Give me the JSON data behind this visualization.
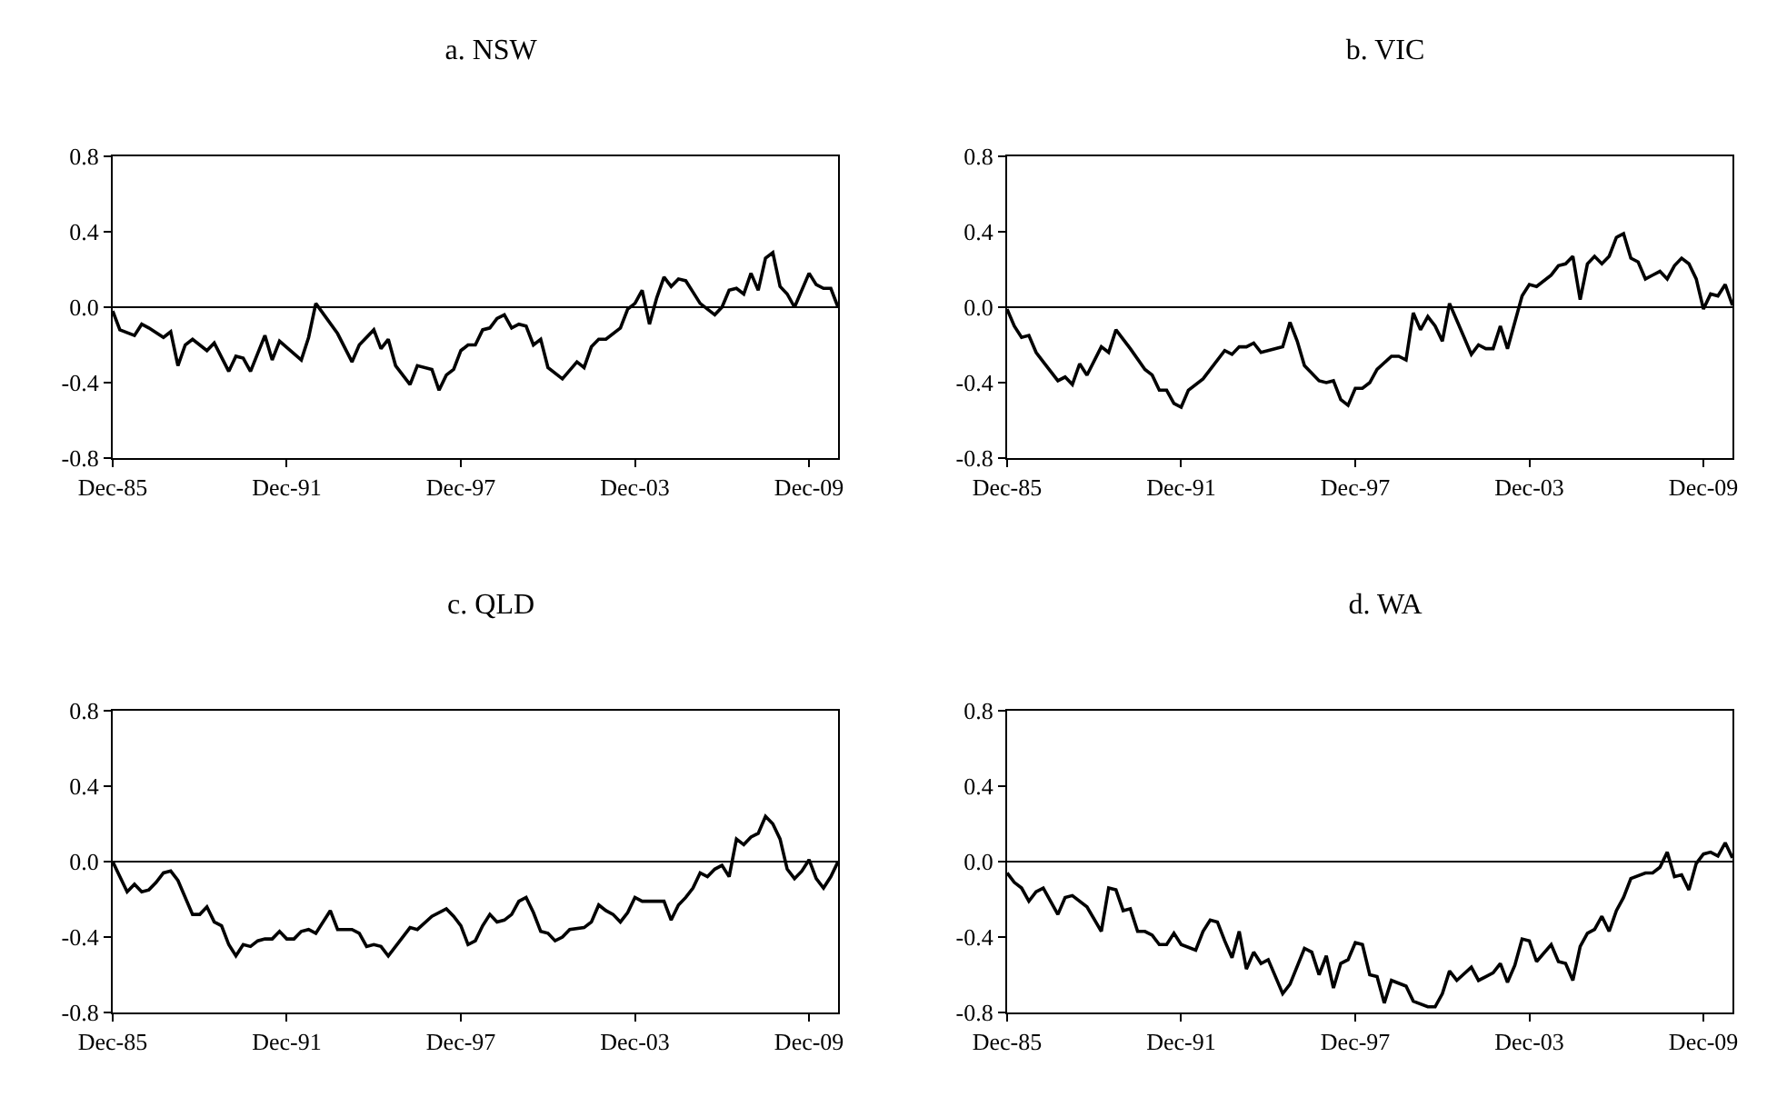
{
  "chart_data": [
    {
      "type": "line",
      "title": "a. NSW",
      "ref_lines": [
        {
          "axis": "y",
          "value": 0
        }
      ],
      "xlim": [
        "1985-12",
        "2010-12"
      ],
      "ylim": [
        -0.8,
        0.8
      ],
      "grid": false,
      "xticks": [
        {
          "value": "1985-12",
          "label": "Dec-85"
        },
        {
          "value": "1991-12",
          "label": "Dec-91"
        },
        {
          "value": "1997-12",
          "label": "Dec-97"
        },
        {
          "value": "2003-12",
          "label": "Dec-03"
        },
        {
          "value": "2009-12",
          "label": "Dec-09"
        }
      ],
      "yticks": [
        {
          "value": -0.8,
          "label": "-0.8"
        },
        {
          "value": -0.4,
          "label": "-0.4"
        },
        {
          "value": 0,
          "label": "0.0"
        },
        {
          "value": 0.4,
          "label": "0.4"
        },
        {
          "value": 0.8,
          "label": "0.8"
        }
      ],
      "x": [
        "1985-12",
        "1986-03",
        "1986-09",
        "1986-12",
        "1987-03",
        "1987-09",
        "1987-12",
        "1988-03",
        "1988-06",
        "1988-09",
        "1989-03",
        "1989-06",
        "1989-12",
        "1990-03",
        "1990-06",
        "1990-09",
        "1991-03",
        "1991-06",
        "1991-09",
        "1992-06",
        "1992-09",
        "1992-12",
        "1993-09",
        "1994-03",
        "1994-06",
        "1994-12",
        "1995-03",
        "1995-06",
        "1995-09",
        "1996-03",
        "1996-06",
        "1996-12",
        "1997-03",
        "1997-06",
        "1997-09",
        "1997-12",
        "1998-03",
        "1998-06",
        "1998-09",
        "1998-12",
        "1999-03",
        "1999-06",
        "1999-09",
        "1999-12",
        "2000-03",
        "2000-06",
        "2000-09",
        "2000-12",
        "2001-06",
        "2001-12",
        "2002-03",
        "2002-06",
        "2002-09",
        "2002-12",
        "2003-06",
        "2003-09",
        "2003-12",
        "2004-03",
        "2004-06",
        "2004-09",
        "2004-12",
        "2005-03",
        "2005-06",
        "2005-09",
        "2005-12",
        "2006-03",
        "2006-09",
        "2006-12",
        "2007-03",
        "2007-06",
        "2007-09",
        "2007-12",
        "2008-03",
        "2008-06",
        "2008-09",
        "2008-12",
        "2009-03",
        "2009-06",
        "2009-12",
        "2010-03",
        "2010-06",
        "2010-09",
        "2010-12"
      ],
      "series": [
        {
          "color": "#000000",
          "values": [
            -0.02,
            -0.12,
            -0.15,
            -0.09,
            -0.11,
            -0.16,
            -0.13,
            -0.31,
            -0.2,
            -0.17,
            -0.23,
            -0.19,
            -0.34,
            -0.26,
            -0.27,
            -0.34,
            -0.15,
            -0.28,
            -0.18,
            -0.28,
            -0.16,
            0.02,
            -0.14,
            -0.29,
            -0.2,
            -0.12,
            -0.22,
            -0.17,
            -0.31,
            -0.41,
            -0.31,
            -0.33,
            -0.44,
            -0.36,
            -0.33,
            -0.23,
            -0.2,
            -0.2,
            -0.12,
            -0.11,
            -0.06,
            -0.04,
            -0.11,
            -0.09,
            -0.1,
            -0.2,
            -0.17,
            -0.32,
            -0.38,
            -0.29,
            -0.32,
            -0.21,
            -0.17,
            -0.17,
            -0.11,
            -0.01,
            0.02,
            0.09,
            -0.09,
            0.05,
            0.16,
            0.11,
            0.15,
            0.14,
            0.08,
            0.02,
            -0.04,
            0.0,
            0.09,
            0.1,
            0.07,
            0.18,
            0.09,
            0.26,
            0.29,
            0.11,
            0.07,
            0.0,
            0.18,
            0.12,
            0.1,
            0.1,
            0.0
          ]
        }
      ]
    },
    {
      "type": "line",
      "title": "b. VIC",
      "ref_lines": [
        {
          "axis": "y",
          "value": 0
        }
      ],
      "xlim": [
        "1985-12",
        "2010-12"
      ],
      "ylim": [
        -0.8,
        0.8
      ],
      "grid": false,
      "xticks": [
        {
          "value": "1985-12",
          "label": "Dec-85"
        },
        {
          "value": "1991-12",
          "label": "Dec-91"
        },
        {
          "value": "1997-12",
          "label": "Dec-97"
        },
        {
          "value": "2003-12",
          "label": "Dec-03"
        },
        {
          "value": "2009-12",
          "label": "Dec-09"
        }
      ],
      "yticks": [
        {
          "value": -0.8,
          "label": "-0.8"
        },
        {
          "value": -0.4,
          "label": "-0.4"
        },
        {
          "value": 0,
          "label": "0.0"
        },
        {
          "value": 0.4,
          "label": "0.4"
        },
        {
          "value": 0.8,
          "label": "0.8"
        }
      ],
      "x": [
        "1985-12",
        "1986-03",
        "1986-06",
        "1986-09",
        "1986-12",
        "1987-03",
        "1987-09",
        "1987-12",
        "1988-03",
        "1988-06",
        "1988-09",
        "1989-03",
        "1989-06",
        "1989-09",
        "1990-03",
        "1990-09",
        "1990-12",
        "1991-03",
        "1991-06",
        "1991-09",
        "1991-12",
        "1992-03",
        "1992-09",
        "1993-06",
        "1993-09",
        "1993-12",
        "1994-03",
        "1994-06",
        "1994-09",
        "1995-06",
        "1995-09",
        "1995-12",
        "1996-03",
        "1996-09",
        "1996-12",
        "1997-03",
        "1997-06",
        "1997-09",
        "1997-12",
        "1998-03",
        "1998-06",
        "1998-09",
        "1999-03",
        "1999-06",
        "1999-09",
        "1999-12",
        "2000-03",
        "2000-06",
        "2000-09",
        "2000-12",
        "2001-03",
        "2001-06",
        "2001-09",
        "2001-12",
        "2002-03",
        "2002-06",
        "2002-09",
        "2002-12",
        "2003-03",
        "2003-09",
        "2003-12",
        "2004-03",
        "2004-09",
        "2004-12",
        "2005-03",
        "2005-06",
        "2005-09",
        "2005-12",
        "2006-03",
        "2006-06",
        "2006-09",
        "2006-12",
        "2007-03",
        "2007-06",
        "2007-09",
        "2007-12",
        "2008-03",
        "2008-06",
        "2008-09",
        "2008-12",
        "2009-03",
        "2009-06",
        "2009-09",
        "2009-12",
        "2010-03",
        "2010-06",
        "2010-09",
        "2010-12"
      ],
      "series": [
        {
          "color": "#000000",
          "values": [
            -0.01,
            -0.1,
            -0.16,
            -0.15,
            -0.24,
            -0.29,
            -0.39,
            -0.37,
            -0.41,
            -0.3,
            -0.36,
            -0.21,
            -0.24,
            -0.12,
            -0.22,
            -0.33,
            -0.36,
            -0.44,
            -0.44,
            -0.51,
            -0.53,
            -0.44,
            -0.38,
            -0.23,
            -0.25,
            -0.21,
            -0.21,
            -0.19,
            -0.24,
            -0.21,
            -0.08,
            -0.18,
            -0.31,
            -0.39,
            -0.4,
            -0.39,
            -0.49,
            -0.52,
            -0.43,
            -0.43,
            -0.4,
            -0.33,
            -0.26,
            -0.26,
            -0.28,
            -0.03,
            -0.12,
            -0.05,
            -0.1,
            -0.18,
            0.02,
            -0.07,
            -0.16,
            -0.25,
            -0.2,
            -0.22,
            -0.22,
            -0.1,
            -0.22,
            0.06,
            0.12,
            0.11,
            0.17,
            0.22,
            0.23,
            0.27,
            0.04,
            0.23,
            0.27,
            0.23,
            0.27,
            0.37,
            0.39,
            0.26,
            0.24,
            0.15,
            0.17,
            0.19,
            0.15,
            0.22,
            0.26,
            0.23,
            0.15,
            -0.01,
            0.07,
            0.06,
            0.12,
            0.01
          ]
        }
      ]
    },
    {
      "type": "line",
      "title": "c. QLD",
      "ref_lines": [
        {
          "axis": "y",
          "value": 0
        }
      ],
      "xlim": [
        "1985-12",
        "2010-12"
      ],
      "ylim": [
        -0.8,
        0.8
      ],
      "grid": false,
      "xticks": [
        {
          "value": "1985-12",
          "label": "Dec-85"
        },
        {
          "value": "1991-12",
          "label": "Dec-91"
        },
        {
          "value": "1997-12",
          "label": "Dec-97"
        },
        {
          "value": "2003-12",
          "label": "Dec-03"
        },
        {
          "value": "2009-12",
          "label": "Dec-09"
        }
      ],
      "yticks": [
        {
          "value": -0.8,
          "label": "-0.8"
        },
        {
          "value": -0.4,
          "label": "-0.4"
        },
        {
          "value": 0,
          "label": "0.0"
        },
        {
          "value": 0.4,
          "label": "0.4"
        },
        {
          "value": 0.8,
          "label": "0.8"
        }
      ],
      "x": [
        "1985-12",
        "1986-03",
        "1986-06",
        "1986-09",
        "1986-12",
        "1987-03",
        "1987-06",
        "1987-09",
        "1987-12",
        "1988-03",
        "1988-09",
        "1988-12",
        "1989-03",
        "1989-06",
        "1989-09",
        "1989-12",
        "1990-03",
        "1990-06",
        "1990-09",
        "1990-12",
        "1991-03",
        "1991-06",
        "1991-09",
        "1991-12",
        "1992-03",
        "1992-06",
        "1992-09",
        "1992-12",
        "1993-06",
        "1993-09",
        "1994-03",
        "1994-06",
        "1994-09",
        "1994-12",
        "1995-03",
        "1995-06",
        "1996-03",
        "1996-06",
        "1996-12",
        "1997-06",
        "1997-09",
        "1997-12",
        "1998-03",
        "1998-06",
        "1998-09",
        "1998-12",
        "1999-03",
        "1999-06",
        "1999-09",
        "1999-12",
        "2000-03",
        "2000-06",
        "2000-09",
        "2000-12",
        "2001-03",
        "2001-06",
        "2001-09",
        "2002-03",
        "2002-06",
        "2002-09",
        "2002-12",
        "2003-03",
        "2003-06",
        "2003-09",
        "2003-12",
        "2004-03",
        "2004-12",
        "2005-03",
        "2005-06",
        "2005-09",
        "2005-12",
        "2006-03",
        "2006-06",
        "2006-09",
        "2006-12",
        "2007-03",
        "2007-06",
        "2007-09",
        "2007-12",
        "2008-03",
        "2008-06",
        "2008-09",
        "2008-12",
        "2009-03",
        "2009-06",
        "2009-09",
        "2009-12",
        "2010-03",
        "2010-06",
        "2010-09",
        "2010-12"
      ],
      "series": [
        {
          "color": "#000000",
          "values": [
            0.0,
            -0.08,
            -0.16,
            -0.12,
            -0.16,
            -0.15,
            -0.11,
            -0.06,
            -0.05,
            -0.1,
            -0.28,
            -0.28,
            -0.24,
            -0.32,
            -0.34,
            -0.44,
            -0.5,
            -0.44,
            -0.45,
            -0.42,
            -0.41,
            -0.41,
            -0.37,
            -0.41,
            -0.41,
            -0.37,
            -0.36,
            -0.38,
            -0.26,
            -0.36,
            -0.36,
            -0.38,
            -0.45,
            -0.44,
            -0.45,
            -0.5,
            -0.35,
            -0.36,
            -0.29,
            -0.25,
            -0.29,
            -0.34,
            -0.44,
            -0.42,
            -0.34,
            -0.28,
            -0.32,
            -0.31,
            -0.28,
            -0.21,
            -0.19,
            -0.27,
            -0.37,
            -0.38,
            -0.42,
            -0.4,
            -0.36,
            -0.35,
            -0.32,
            -0.23,
            -0.26,
            -0.28,
            -0.32,
            -0.27,
            -0.19,
            -0.21,
            -0.21,
            -0.31,
            -0.23,
            -0.19,
            -0.14,
            -0.06,
            -0.08,
            -0.04,
            -0.02,
            -0.08,
            0.12,
            0.09,
            0.13,
            0.15,
            0.24,
            0.2,
            0.12,
            -0.04,
            -0.09,
            -0.05,
            0.01,
            -0.09,
            -0.14,
            -0.08,
            0.0
          ]
        }
      ]
    },
    {
      "type": "line",
      "title": "d. WA",
      "ref_lines": [
        {
          "axis": "y",
          "value": 0
        }
      ],
      "xlim": [
        "1985-12",
        "2010-12"
      ],
      "ylim": [
        -0.8,
        0.8
      ],
      "grid": false,
      "xticks": [
        {
          "value": "1985-12",
          "label": "Dec-85"
        },
        {
          "value": "1991-12",
          "label": "Dec-91"
        },
        {
          "value": "1997-12",
          "label": "Dec-97"
        },
        {
          "value": "2003-12",
          "label": "Dec-03"
        },
        {
          "value": "2009-12",
          "label": "Dec-09"
        }
      ],
      "yticks": [
        {
          "value": -0.8,
          "label": "-0.8"
        },
        {
          "value": -0.4,
          "label": "-0.4"
        },
        {
          "value": 0,
          "label": "0.0"
        },
        {
          "value": 0.4,
          "label": "0.4"
        },
        {
          "value": 0.8,
          "label": "0.8"
        }
      ],
      "x": [
        "1985-12",
        "1986-03",
        "1986-06",
        "1986-09",
        "1986-12",
        "1987-03",
        "1987-09",
        "1987-12",
        "1988-03",
        "1988-09",
        "1989-03",
        "1989-06",
        "1989-09",
        "1989-12",
        "1990-03",
        "1990-06",
        "1990-09",
        "1990-12",
        "1991-03",
        "1991-06",
        "1991-09",
        "1991-12",
        "1992-06",
        "1992-09",
        "1992-12",
        "1993-03",
        "1993-06",
        "1993-09",
        "1993-12",
        "1994-03",
        "1994-06",
        "1994-09",
        "1994-12",
        "1995-06",
        "1995-09",
        "1996-03",
        "1996-06",
        "1996-09",
        "1996-12",
        "1997-03",
        "1997-06",
        "1997-09",
        "1997-12",
        "1998-03",
        "1998-06",
        "1998-09",
        "1998-12",
        "1999-03",
        "1999-09",
        "1999-12",
        "2000-06",
        "2000-09",
        "2000-12",
        "2001-03",
        "2001-06",
        "2001-12",
        "2002-03",
        "2002-06",
        "2002-09",
        "2002-12",
        "2003-03",
        "2003-06",
        "2003-09",
        "2003-12",
        "2004-03",
        "2004-09",
        "2004-12",
        "2005-03",
        "2005-06",
        "2005-09",
        "2005-12",
        "2006-03",
        "2006-06",
        "2006-09",
        "2006-12",
        "2007-03",
        "2007-06",
        "2007-12",
        "2008-03",
        "2008-06",
        "2008-09",
        "2008-12",
        "2009-03",
        "2009-06",
        "2009-09",
        "2009-12",
        "2010-03",
        "2010-06",
        "2010-09",
        "2010-12"
      ],
      "series": [
        {
          "color": "#000000",
          "values": [
            -0.06,
            -0.11,
            -0.14,
            -0.21,
            -0.16,
            -0.14,
            -0.28,
            -0.19,
            -0.18,
            -0.24,
            -0.37,
            -0.14,
            -0.15,
            -0.26,
            -0.25,
            -0.37,
            -0.37,
            -0.39,
            -0.44,
            -0.44,
            -0.38,
            -0.44,
            -0.47,
            -0.37,
            -0.31,
            -0.32,
            -0.42,
            -0.51,
            -0.37,
            -0.57,
            -0.48,
            -0.54,
            -0.52,
            -0.7,
            -0.65,
            -0.46,
            -0.48,
            -0.6,
            -0.5,
            -0.67,
            -0.54,
            -0.52,
            -0.43,
            -0.44,
            -0.6,
            -0.61,
            -0.75,
            -0.63,
            -0.66,
            -0.74,
            -0.77,
            -0.77,
            -0.7,
            -0.58,
            -0.63,
            -0.56,
            -0.63,
            -0.61,
            -0.59,
            -0.54,
            -0.64,
            -0.55,
            -0.41,
            -0.42,
            -0.53,
            -0.44,
            -0.53,
            -0.54,
            -0.63,
            -0.45,
            -0.38,
            -0.36,
            -0.29,
            -0.37,
            -0.26,
            -0.19,
            -0.09,
            -0.06,
            -0.06,
            -0.03,
            0.05,
            -0.08,
            -0.07,
            -0.15,
            -0.01,
            0.04,
            0.05,
            0.03,
            0.1,
            0.02
          ]
        }
      ]
    }
  ]
}
